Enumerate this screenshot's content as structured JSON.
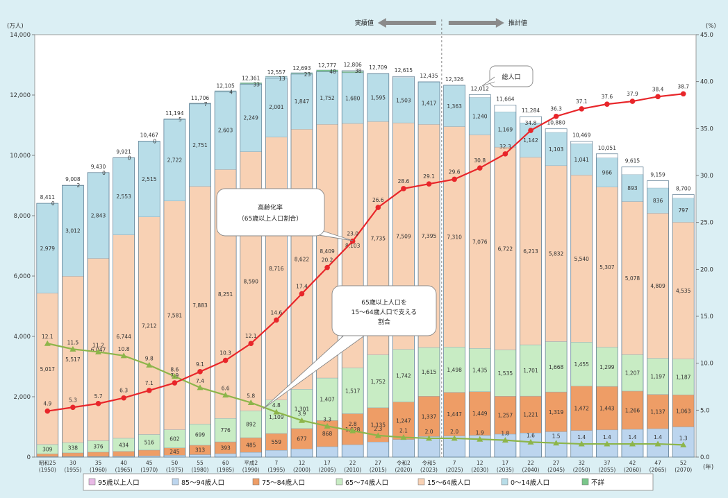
{
  "chart_data": {
    "type": "bar",
    "ylabel_left": "(万人)",
    "ylabel_right": "(%)",
    "xlabel_unit": "(年)",
    "ylim": [
      0,
      14000
    ],
    "ylim_right": [
      0,
      45
    ],
    "yticks_left": [
      "0",
      "2,000",
      "4,000",
      "6,000",
      "8,000",
      "10,000",
      "12,000",
      "14,000"
    ],
    "yticks_right": [
      "0.0",
      "5.0",
      "10.0",
      "15.0",
      "20.0",
      "25.0",
      "30.0",
      "35.0",
      "40.0",
      "45.0"
    ],
    "categories": [
      {
        "era": "昭和25",
        "year": "(1950)"
      },
      {
        "era": "30",
        "year": "(1955)"
      },
      {
        "era": "35",
        "year": "(1960)"
      },
      {
        "era": "40",
        "year": "(1965)"
      },
      {
        "era": "45",
        "year": "(1970)"
      },
      {
        "era": "50",
        "year": "(1975)"
      },
      {
        "era": "55",
        "year": "(1980)"
      },
      {
        "era": "60",
        "year": "(1985)"
      },
      {
        "era": "平成2",
        "year": "(1990)"
      },
      {
        "era": "7",
        "year": "(1995)"
      },
      {
        "era": "12",
        "year": "(2000)"
      },
      {
        "era": "17",
        "year": "(2005)"
      },
      {
        "era": "22",
        "year": "(2010)"
      },
      {
        "era": "27",
        "year": "(2015)"
      },
      {
        "era": "令和2",
        "year": "(2020)"
      },
      {
        "era": "令和5",
        "year": "(2023)"
      },
      {
        "era": "7",
        "year": "(2025)"
      },
      {
        "era": "12",
        "year": "(2030)"
      },
      {
        "era": "17",
        "year": "(2035)"
      },
      {
        "era": "22",
        "year": "(2040)"
      },
      {
        "era": "27",
        "year": "(2045)"
      },
      {
        "era": "32",
        "year": "(2050)"
      },
      {
        "era": "37",
        "year": "(2055)"
      },
      {
        "era": "42",
        "year": "(2060)"
      },
      {
        "era": "47",
        "year": "(2065)"
      },
      {
        "era": "52",
        "year": "(2070)"
      }
    ],
    "series": [
      {
        "name": "95歳以上人口",
        "color": "#e9b9e6",
        "values": [
          null,
          null,
          null,
          null,
          null,
          null,
          null,
          null,
          null,
          null,
          null,
          null,
          null,
          null,
          null,
          null,
          null,
          null,
          null,
          null,
          null,
          null,
          null,
          null,
          null,
          null
        ],
        "labels": [
          "",
          "",
          "",
          "",
          "",
          "",
          "",
          "",
          "",
          "",
          "",
          "",
          "",
          "",
          "",
          "",
          "",
          "",
          "",
          "",
          "",
          "",
          "",
          "",
          "",
          ""
        ]
      },
      {
        "name": "85～94歳人口",
        "color": "#bcd5ee",
        "values": [
          14,
          15,
          19,
          25,
          38,
          59,
          80,
          112,
          158,
          223,
          269,
          345,
          410,
          500,
          580,
          680,
          700,
          720,
          760,
          800,
          840,
          880,
          900,
          920,
          940,
          1000
        ],
        "labels": [
          "",
          "",
          "",
          "",
          "",
          "",
          "",
          "",
          "",
          "",
          "",
          "",
          "",
          "",
          "",
          "",
          "",
          "",
          "",
          "",
          "",
          "",
          "",
          "",
          "",
          ""
        ]
      },
      {
        "name": "75～84歳人口",
        "color": "#ee9d66",
        "values": [
          93,
          125,
          145,
          164,
          194,
          245,
          313,
          393,
          485,
          559,
          677,
          868,
          1028,
          1135,
          1247,
          1337,
          1447,
          1449,
          1257,
          1221,
          1319,
          1472,
          1443,
          1266,
          1137,
          1063
        ],
        "labels": [
          "",
          "",
          "",
          "",
          "",
          "245",
          "313",
          "393",
          "485",
          "559",
          "677",
          "868",
          "1,028",
          "1,135",
          "1,247",
          "1,337",
          "1,447",
          "1,449",
          "1,257",
          "1,221",
          "1,319",
          "1,472",
          "1,443",
          "1,266",
          "1,137",
          "1,063"
        ]
      },
      {
        "name": "65～74歳人口",
        "color": "#c8ecc4",
        "values": [
          309,
          338,
          376,
          434,
          516,
          602,
          699,
          776,
          892,
          1109,
          1301,
          1407,
          1517,
          1752,
          1742,
          1615,
          1498,
          1435,
          1535,
          1701,
          1668,
          1455,
          1299,
          1207,
          1197,
          1187
        ],
        "labels": [
          "309",
          "338",
          "376",
          "434",
          "516",
          "602",
          "699",
          "776",
          "892",
          "1,109",
          "1,301",
          "1,407",
          "1,517",
          "1,752",
          "1,742",
          "1,615",
          "1,498",
          "1,435",
          "1,535",
          "1,701",
          "1,668",
          "1,455",
          "1,299",
          "1,207",
          "1,197",
          "1,187"
        ]
      },
      {
        "name": "15～64歳人口",
        "color": "#f8d1b4",
        "values": [
          5017,
          5517,
          6047,
          6744,
          7212,
          7581,
          7883,
          8251,
          8590,
          8716,
          8622,
          8409,
          8103,
          7735,
          7509,
          7395,
          7310,
          7076,
          6722,
          6213,
          5832,
          5540,
          5307,
          5078,
          4809,
          4535
        ],
        "labels": [
          "5,017",
          "5,517",
          "6,047",
          "6,744",
          "7,212",
          "7,581",
          "7,883",
          "8,251",
          "8,590",
          "8,716",
          "8,622",
          "8,409",
          "8,103",
          "7,735",
          "7,509",
          "7,395",
          "7,310",
          "7,076",
          "6,722",
          "6,213",
          "5,832",
          "5,540",
          "5,307",
          "5,078",
          "4,809",
          "4,535"
        ]
      },
      {
        "name": "0～14歳人口",
        "color": "#b8dde8",
        "values": [
          2979,
          3012,
          2843,
          2553,
          2515,
          2722,
          2751,
          2603,
          2249,
          2001,
          1847,
          1752,
          1680,
          1595,
          1503,
          1417,
          1363,
          1240,
          1169,
          1142,
          1103,
          1041,
          966,
          893,
          836,
          797
        ],
        "labels": [
          "2,979",
          "3,012",
          "2,843",
          "2,553",
          "2,515",
          "2,722",
          "2,751",
          "2,603",
          "2,249",
          "2,001",
          "1,847",
          "1,752",
          "1,680",
          "1,595",
          "1,503",
          "1,417",
          "1,363",
          "1,240",
          "1,169",
          "1,142",
          "1,103",
          "1,041",
          "966",
          "893",
          "836",
          "797"
        ]
      },
      {
        "name": "不詳",
        "color": "#7ac68a",
        "values": [
          0,
          2,
          0,
          0,
          0,
          5,
          7,
          4,
          33,
          13,
          23,
          48,
          38,
          0,
          0,
          0,
          0,
          0,
          0,
          0,
          0,
          0,
          0,
          0,
          0,
          0
        ],
        "labels": [
          "0",
          "2",
          "0",
          "0",
          "0",
          "5",
          "7",
          "4",
          "33",
          "13",
          "23",
          "48",
          "38",
          "",
          "",
          "",
          "",
          "",
          "",
          "",
          "",
          "",
          "",
          "",
          "",
          ""
        ]
      }
    ],
    "totals": [
      "8,411",
      "9,008",
      "9,430",
      "9,921",
      "10,467",
      "11,194",
      "11,706",
      "12,105",
      "12,361",
      "12,557",
      "12,693",
      "12,777",
      "12,806",
      "12,709",
      "12,615",
      "12,435",
      "12,326",
      "12,012",
      "11,664",
      "11,284",
      "10,880",
      "10,469",
      "10,051",
      "9,615",
      "9,159",
      "8,700"
    ],
    "aging_rate": {
      "name": "高齢化率",
      "color": "#e8262a",
      "values": [
        4.9,
        5.3,
        5.7,
        6.3,
        7.1,
        7.9,
        9.1,
        10.3,
        12.1,
        14.6,
        17.4,
        20.2,
        23.0,
        26.6,
        28.6,
        29.1,
        29.6,
        30.8,
        32.3,
        34.8,
        36.3,
        37.1,
        37.6,
        37.9,
        38.4,
        38.7
      ],
      "labels": [
        "4.9",
        "5.3",
        "5.7",
        "6.3",
        "7.1",
        "7.9",
        "9.1",
        "10.3",
        "12.1",
        "14.6",
        "17.4",
        "20.2",
        "23.0",
        "26.6",
        "28.6",
        "29.1",
        "29.6",
        "30.8",
        "32.3",
        "34.8",
        "36.3",
        "37.1",
        "37.6",
        "37.9",
        "38.4",
        "38.7"
      ]
    },
    "support_ratio": {
      "name": "65歳以上人口を15～64歳人口で支える割合",
      "color": "#8db54a",
      "values": [
        12.1,
        11.5,
        11.2,
        10.8,
        9.8,
        8.6,
        7.4,
        6.6,
        5.8,
        4.8,
        3.9,
        3.3,
        2.8,
        2.3,
        2.1,
        2.0,
        2.0,
        1.9,
        1.8,
        1.6,
        1.5,
        1.4,
        1.4,
        1.4,
        1.4,
        1.3
      ],
      "labels": [
        "12.1",
        "11.5",
        "11.2",
        "10.8",
        "9.8",
        "8.6",
        "7.4",
        "6.6",
        "5.8",
        "4.8",
        "3.9",
        "3.3",
        "2.8",
        "2.3",
        "2.1",
        "2.0",
        "2.0",
        "1.9",
        "1.8",
        "1.6",
        "1.5",
        "1.4",
        "1.4",
        "1.4",
        "1.4",
        "1.3"
      ]
    },
    "annotations": {
      "actual": "実績値",
      "projected": "推計値",
      "total_pop": "総人口",
      "aging_callout": [
        "高齢化率",
        "（65歳以上人口割合）"
      ],
      "support_callout": [
        "65歳以上人口を",
        "15～64歳人口で支える",
        "割合"
      ]
    },
    "legend": [
      "95歳以上人口",
      "85～94歳人口",
      "75～84歳人口",
      "65～74歳人口",
      "15～64歳人口",
      "0～14歳人口",
      "不詳"
    ],
    "legend_position": "bottom",
    "grid": false
  }
}
